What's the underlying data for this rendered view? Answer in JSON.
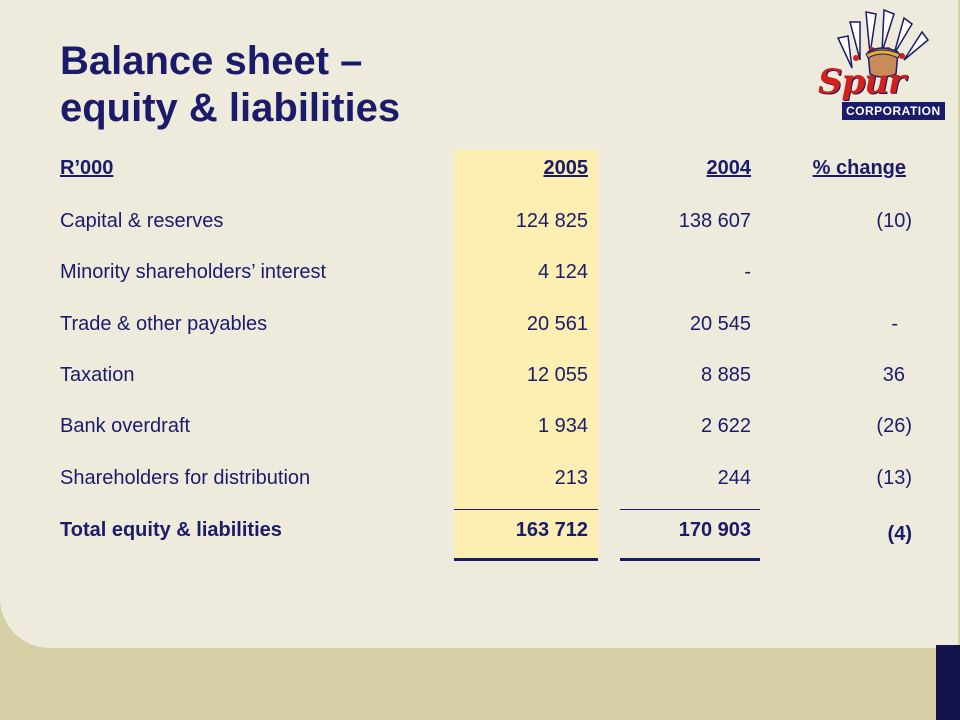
{
  "slide": {
    "title_line1": "Balance sheet –",
    "title_line2": "equity & liabilities"
  },
  "logo": {
    "script_text": "Spur",
    "corp_text": "CORPORATION"
  },
  "table": {
    "headers": {
      "label": "R’000",
      "y2005": "2005",
      "y2004": "2004",
      "change": "% change"
    },
    "rows": [
      {
        "label": "Capital & reserves",
        "y2005": "124 825",
        "y2004": "138 607",
        "change": "(10)"
      },
      {
        "label": "Minority shareholders’ interest",
        "y2005": "4 124",
        "y2004": "-",
        "change": ""
      },
      {
        "label": "Trade & other payables",
        "y2005": "20 561",
        "y2004": "20 545",
        "change": "-"
      },
      {
        "label": "Taxation",
        "y2005": "12 055",
        "y2004": "8 885",
        "change": "36"
      },
      {
        "label": "Bank overdraft",
        "y2005": "1 934",
        "y2004": "2 622",
        "change": "(26)"
      },
      {
        "label": "Shareholders for distribution",
        "y2005": "213",
        "y2004": "244",
        "change": "(13)"
      }
    ],
    "total": {
      "label": "Total equity & liabilities",
      "y2005": "163 712",
      "y2004": "170 903",
      "change": "(4)"
    }
  },
  "colors": {
    "text": "#1b1b6b",
    "panel": "#efebdc",
    "footer": "#d6cfa6",
    "highlight": "#fdefb1",
    "accent_bar": "#14124a",
    "logo_red": "#d4201c"
  }
}
